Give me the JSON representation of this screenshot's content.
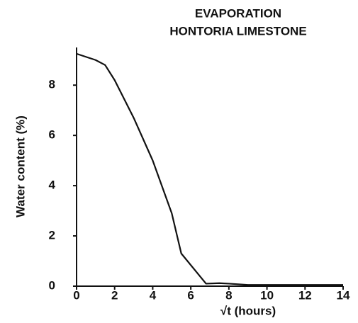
{
  "chart_data": {
    "type": "line",
    "title": [
      "EVAPORATION",
      "HONTORIA LIMESTONE"
    ],
    "x_label": "√t (hours)",
    "y_label": "Water content (%)",
    "x": [
      0,
      1,
      1.5,
      2,
      3,
      4,
      5,
      5.5,
      6.8,
      7.5,
      8,
      9,
      14
    ],
    "series": [
      {
        "name": "Water content",
        "color": "#111111",
        "values": [
          9.25,
          9.0,
          8.8,
          8.2,
          6.7,
          5.0,
          2.9,
          1.3,
          0.1,
          0.12,
          0.1,
          0.05,
          0.05
        ]
      }
    ],
    "xlim": [
      0,
      14
    ],
    "xticks": [
      0,
      2,
      4,
      6,
      8,
      10,
      12,
      14
    ],
    "ylim": [
      0,
      9.5
    ],
    "yticks": [
      0,
      2,
      4,
      6,
      8
    ]
  }
}
